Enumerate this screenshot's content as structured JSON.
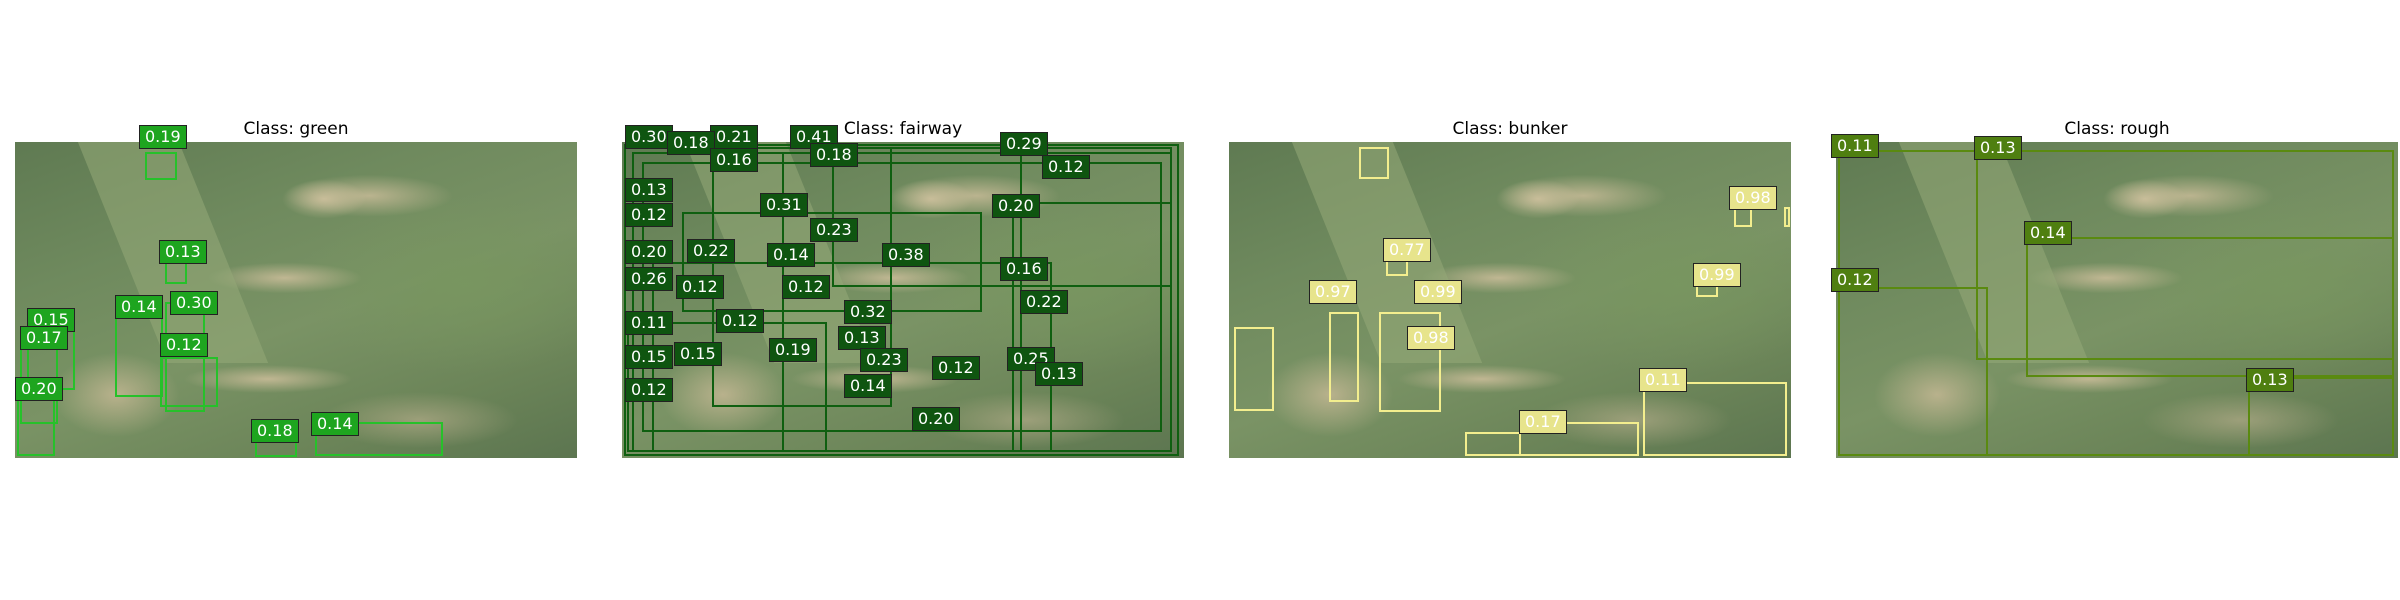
{
  "panels": [
    {
      "id": "green",
      "title": "Class: green",
      "color": "#26c12a",
      "boxes": [
        {
          "label": "0.19"
        },
        {
          "label": "0.13"
        },
        {
          "label": "0.30"
        },
        {
          "label": "0.14"
        },
        {
          "label": "0.15"
        },
        {
          "label": "0.17"
        },
        {
          "label": "0.12"
        },
        {
          "label": "0.20"
        },
        {
          "label": "0.18"
        },
        {
          "label": "0.14"
        }
      ]
    },
    {
      "id": "fairway",
      "title": "Class: fairway",
      "color": "#0f5f10",
      "boxes": [
        {
          "label": "0.30"
        },
        {
          "label": "0.21"
        },
        {
          "label": "0.18"
        },
        {
          "label": "0.16"
        },
        {
          "label": "0.41"
        },
        {
          "label": "0.18"
        },
        {
          "label": "0.29"
        },
        {
          "label": "0.12"
        },
        {
          "label": "0.13"
        },
        {
          "label": "0.12"
        },
        {
          "label": "0.31"
        },
        {
          "label": "0.20"
        },
        {
          "label": "0.23"
        },
        {
          "label": "0.20"
        },
        {
          "label": "0.22"
        },
        {
          "label": "0.14"
        },
        {
          "label": "0.38"
        },
        {
          "label": "0.16"
        },
        {
          "label": "0.26"
        },
        {
          "label": "0.12"
        },
        {
          "label": "0.12"
        },
        {
          "label": "0.22"
        },
        {
          "label": "0.32"
        },
        {
          "label": "0.11"
        },
        {
          "label": "0.12"
        },
        {
          "label": "0.13"
        },
        {
          "label": "0.15"
        },
        {
          "label": "0.15"
        },
        {
          "label": "0.19"
        },
        {
          "label": "0.23"
        },
        {
          "label": "0.25"
        },
        {
          "label": "0.12"
        },
        {
          "label": "0.13"
        },
        {
          "label": "0.12"
        },
        {
          "label": "0.14"
        },
        {
          "label": "0.20"
        }
      ]
    },
    {
      "id": "bunker",
      "title": "Class: bunker",
      "color": "#f3ee8e",
      "boxes": [
        {
          "label": "0.98"
        },
        {
          "label": "0.77"
        },
        {
          "label": "0.99"
        },
        {
          "label": "0.97"
        },
        {
          "label": "0.99"
        },
        {
          "label": "0.98"
        },
        {
          "label": "0.11"
        },
        {
          "label": "0.17"
        }
      ]
    },
    {
      "id": "rough",
      "title": "Class: rough",
      "color": "#5a8a10",
      "boxes": [
        {
          "label": "0.11"
        },
        {
          "label": "0.13"
        },
        {
          "label": "0.14"
        },
        {
          "label": "0.12"
        },
        {
          "label": "0.13"
        }
      ]
    }
  ]
}
